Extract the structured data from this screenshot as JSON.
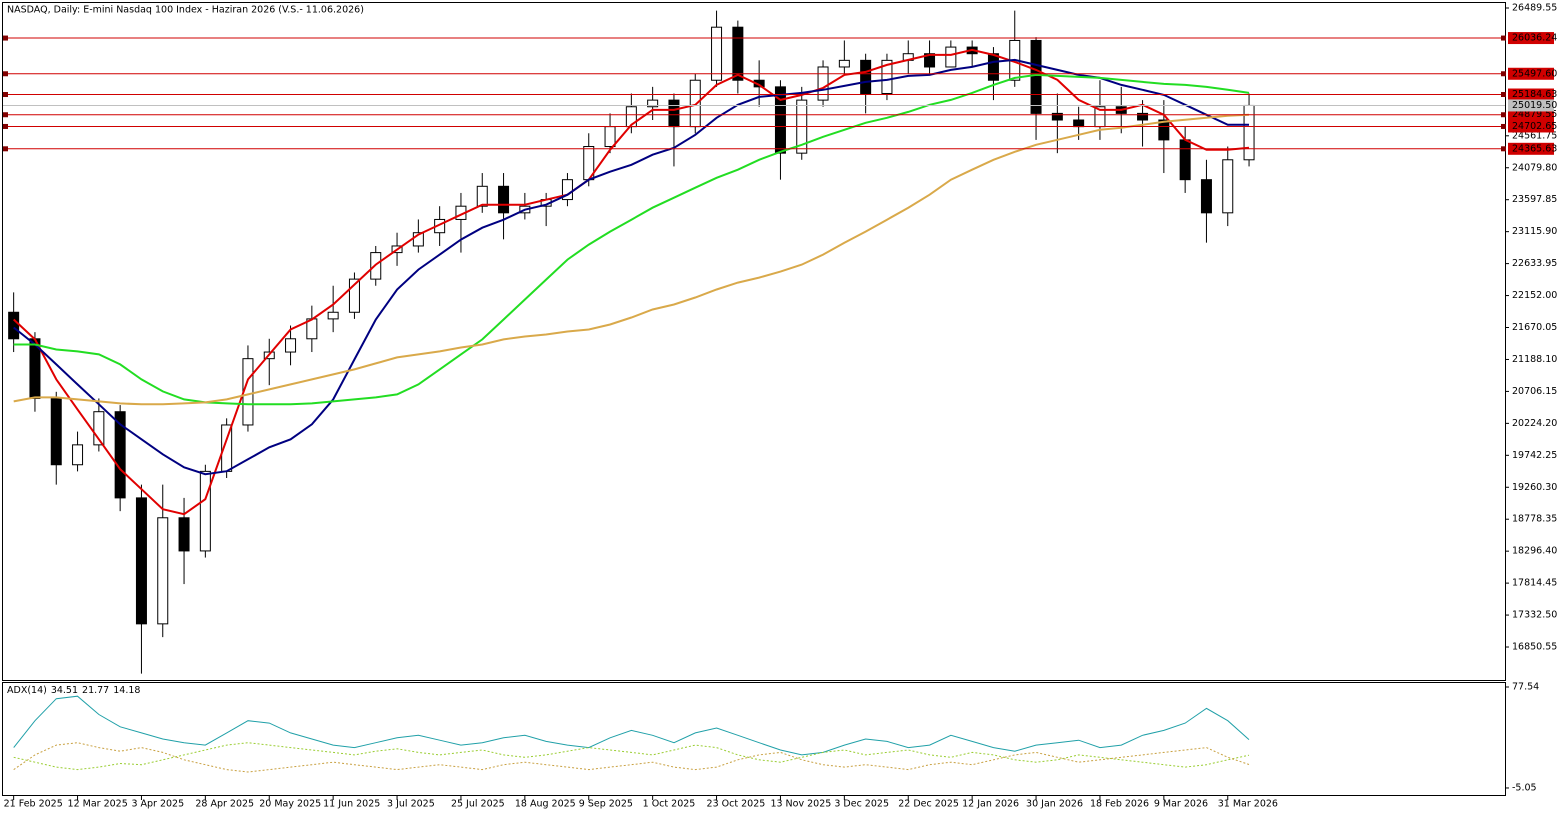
{
  "chart_data": [
    {
      "type": "candlestick",
      "title": "NASDAQ, Daily:  E-mini Nasdaq 100 Index -  Haziran 2026 (V.S.- 11.06.2026)",
      "x": [
        "21 Feb 2025",
        null,
        null,
        "12 Mar 2025",
        null,
        null,
        "3 Apr 2025",
        null,
        null,
        "28 Apr 2025",
        null,
        null,
        "20 May 2025",
        null,
        null,
        "11 Jun 2025",
        null,
        null,
        "3 Jul 2025",
        null,
        null,
        "25 Jul 2025",
        null,
        null,
        "18 Aug 2025",
        null,
        null,
        "9 Sep 2025",
        null,
        null,
        "1 Oct 2025",
        null,
        null,
        "23 Oct 2025",
        null,
        null,
        "13 Nov 2025",
        null,
        null,
        "3 Dec 2025",
        null,
        null,
        "22 Dec 2025",
        null,
        null,
        "12 Jan 2026",
        null,
        null,
        "30 Jan 2026",
        null,
        null,
        "18 Feb 2026",
        null,
        null,
        "9 Mar 2026",
        null,
        null,
        "31 Mar 2026",
        null
      ],
      "open": [
        21900,
        21500,
        20600,
        19600,
        19900,
        20400,
        19100,
        17200,
        18800,
        18300,
        19500,
        20200,
        21200,
        21300,
        21500,
        21800,
        21900,
        22400,
        22800,
        22900,
        23100,
        23300,
        23500,
        23800,
        23400,
        23500,
        23600,
        23900,
        24400,
        24700,
        25000,
        25100,
        24700,
        25400,
        26200,
        25400,
        25300,
        24300,
        25100,
        25600,
        25700,
        25200,
        25700,
        25800,
        25600,
        25900,
        25800,
        25400,
        26000,
        24900,
        24800,
        24700,
        25000,
        24900,
        24800,
        24500,
        23900,
        23400,
        24200
      ],
      "high": [
        22200,
        21600,
        20700,
        20100,
        20600,
        20500,
        19300,
        19300,
        19100,
        19600,
        20300,
        21400,
        21500,
        21700,
        22000,
        22300,
        22500,
        22900,
        23100,
        23300,
        23500,
        23700,
        24000,
        24000,
        23700,
        23700,
        24000,
        24600,
        24900,
        25200,
        25300,
        25200,
        25500,
        26450,
        26300,
        25700,
        25400,
        25300,
        25700,
        26000,
        25800,
        25800,
        26000,
        26000,
        26000,
        26000,
        25900,
        26450,
        26050,
        25200,
        25000,
        25400,
        25300,
        25100,
        25100,
        24700,
        24200,
        24400,
        25200
      ],
      "low": [
        21300,
        20400,
        19300,
        19500,
        19800,
        18900,
        16450,
        17000,
        17800,
        18200,
        19400,
        20100,
        20800,
        21100,
        21300,
        21600,
        21800,
        22300,
        22600,
        22800,
        22900,
        22800,
        23400,
        23000,
        23300,
        23200,
        23500,
        23800,
        24300,
        24600,
        24800,
        24100,
        24600,
        25300,
        25200,
        25000,
        23900,
        24200,
        25000,
        25500,
        24900,
        25100,
        25500,
        25500,
        25600,
        25600,
        25100,
        25300,
        24500,
        24300,
        24500,
        24500,
        24600,
        24400,
        24000,
        23700,
        22950,
        23200,
        24100
      ],
      "close": [
        21500,
        20600,
        19600,
        19900,
        20400,
        19100,
        17200,
        18800,
        18300,
        19500,
        20200,
        21200,
        21300,
        21500,
        21800,
        21900,
        22400,
        22800,
        22900,
        23100,
        23300,
        23500,
        23800,
        23400,
        23500,
        23600,
        23900,
        24400,
        24700,
        25000,
        25100,
        24700,
        25400,
        26200,
        25400,
        25300,
        24300,
        25100,
        25600,
        25700,
        25200,
        25700,
        25800,
        25600,
        25900,
        25800,
        25400,
        26000,
        24900,
        24800,
        24700,
        25000,
        24900,
        24800,
        24500,
        23900,
        23400,
        24200,
        25019.5
      ],
      "up_color": "#ffffff",
      "down_color": "#000000",
      "wick_color": "#000000",
      "lines": [
        {
          "color": "#e00000",
          "values": [
            21791,
            21490,
            20887,
            20435,
            19984,
            19532,
            19231,
            18930,
            18854,
            19080,
            19984,
            20887,
            21264,
            21640,
            21791,
            22017,
            22318,
            22619,
            22845,
            23071,
            23222,
            23372,
            23523,
            23523,
            23523,
            23598,
            23673,
            23899,
            24351,
            24728,
            24953,
            24953,
            25029,
            25330,
            25480,
            25330,
            25104,
            25179,
            25285,
            25480,
            25526,
            25631,
            25706,
            25782,
            25782,
            25857,
            25782,
            25676,
            25556,
            25405,
            25104,
            24953,
            24953,
            25029,
            24878,
            24502,
            24351,
            24351,
            24381
          ]
        },
        {
          "color": "#000080",
          "values": [
            21670,
            21414,
            21113,
            20812,
            20511,
            20210,
            19984,
            19758,
            19562,
            19457,
            19502,
            19682,
            19863,
            19984,
            20210,
            20586,
            21188,
            21791,
            22243,
            22544,
            22770,
            22996,
            23176,
            23297,
            23447,
            23523,
            23673,
            23899,
            24020,
            24125,
            24276,
            24381,
            24577,
            24833,
            25029,
            25149,
            25179,
            25209,
            25255,
            25315,
            25375,
            25405,
            25465,
            25480,
            25556,
            25601,
            25676,
            25706,
            25631,
            25556,
            25480,
            25435,
            25330,
            25255,
            25179,
            25029,
            24878,
            24728,
            24728
          ]
        },
        {
          "color": "#22dd22",
          "values": [
            21414,
            21414,
            21339,
            21309,
            21264,
            21113,
            20887,
            20707,
            20586,
            20541,
            20526,
            20511,
            20511,
            20511,
            20526,
            20556,
            20586,
            20616,
            20661,
            20812,
            21038,
            21264,
            21490,
            21791,
            22092,
            22393,
            22694,
            22920,
            23116,
            23297,
            23478,
            23628,
            23779,
            23929,
            24050,
            24200,
            24321,
            24426,
            24547,
            24652,
            24758,
            24833,
            24923,
            25029,
            25104,
            25209,
            25330,
            25435,
            25480,
            25465,
            25450,
            25435,
            25405,
            25375,
            25345,
            25330,
            25300,
            25255,
            25209
          ]
        },
        {
          "color": "#d9a94a",
          "values": [
            20556,
            20616,
            20616,
            20586,
            20556,
            20526,
            20511,
            20511,
            20526,
            20541,
            20586,
            20661,
            20737,
            20812,
            20887,
            20963,
            21038,
            21128,
            21219,
            21264,
            21309,
            21369,
            21414,
            21490,
            21535,
            21565,
            21610,
            21640,
            21716,
            21821,
            21941,
            22017,
            22122,
            22243,
            22348,
            22423,
            22514,
            22619,
            22770,
            22950,
            23116,
            23297,
            23478,
            23673,
            23899,
            24050,
            24200,
            24321,
            24426,
            24502,
            24577,
            24652,
            24682,
            24728,
            24773,
            24803,
            24833,
            24863,
            24878
          ]
        }
      ],
      "levels": [
        {
          "value": 26036.24,
          "label": "26036.24",
          "color": "#d00000"
        },
        {
          "value": 25497.6,
          "label": "25497.60",
          "color": "#d00000"
        },
        {
          "value": 25184.63,
          "label": "25184.63",
          "color": "#d00000"
        },
        {
          "value": 24879.55,
          "label": "24879.55",
          "color": "#d00000"
        },
        {
          "value": 24702.65,
          "label": "24702.65",
          "color": "#d00000"
        },
        {
          "value": 24365.63,
          "label": "24365.63",
          "color": "#d00000"
        }
      ],
      "last_price": {
        "value": 25019.5,
        "label": "25019.50",
        "color": "#c0c0c0"
      },
      "ylim": [
        16353,
        26565
      ],
      "yticks": [
        26489.55,
        24561.75,
        {
          "value": 24079.8,
          "label": "24079.80"
        },
        23597.85,
        {
          "value": 23115.9,
          "label": "23115.90"
        },
        22633.95,
        {
          "value": 22152,
          "label": "22152.00"
        },
        21670.05,
        {
          "value": 21188.1,
          "label": "21188.10"
        },
        20706.15,
        {
          "value": 20224.2,
          "label": "20224.20"
        },
        19742.25,
        {
          "value": 19260.3,
          "label": "19260.30"
        },
        18778.35,
        {
          "value": 18296.4,
          "label": "18296.40"
        },
        17814.45,
        {
          "value": 17332.5,
          "label": "17332.50"
        },
        16850.55
      ]
    },
    {
      "type": "line",
      "title": "ADX(14)",
      "series": [
        {
          "color": "#20a0a8",
          "style": "solid",
          "values": [
            28,
            50,
            68,
            70,
            55,
            45,
            40,
            35,
            32,
            30,
            40,
            50,
            48,
            40,
            35,
            30,
            28,
            32,
            36,
            38,
            34,
            30,
            32,
            36,
            38,
            33,
            30,
            28,
            36,
            42,
            38,
            32,
            40,
            44,
            38,
            32,
            26,
            22,
            24,
            30,
            35,
            33,
            28,
            30,
            38,
            33,
            28,
            25,
            30,
            32,
            34,
            28,
            30,
            38,
            42,
            48,
            60,
            50,
            34.51
          ]
        },
        {
          "color": "#9acd32",
          "style": "dotted",
          "values": [
            20,
            16,
            12,
            10,
            12,
            15,
            14,
            18,
            22,
            26,
            30,
            32,
            30,
            28,
            26,
            24,
            22,
            25,
            27,
            24,
            22,
            24,
            26,
            22,
            20,
            22,
            25,
            28,
            26,
            24,
            22,
            26,
            30,
            28,
            22,
            18,
            16,
            20,
            24,
            26,
            22,
            24,
            26,
            22,
            20,
            24,
            22,
            18,
            16,
            18,
            22,
            20,
            18,
            16,
            14,
            12,
            14,
            18,
            21.77
          ]
        },
        {
          "color": "#c8a040",
          "style": "dotted",
          "values": [
            10,
            22,
            30,
            32,
            28,
            25,
            28,
            24,
            18,
            14,
            10,
            8,
            10,
            12,
            14,
            16,
            14,
            12,
            10,
            12,
            14,
            12,
            10,
            14,
            16,
            14,
            12,
            10,
            12,
            14,
            16,
            12,
            10,
            12,
            18,
            22,
            24,
            18,
            14,
            12,
            14,
            12,
            10,
            14,
            16,
            14,
            18,
            22,
            24,
            20,
            16,
            18,
            20,
            22,
            24,
            26,
            28,
            20,
            14.18
          ]
        }
      ],
      "ylim": [
        -10.8,
        80.8
      ],
      "yticks": [
        77.54,
        -5.05
      ]
    }
  ]
}
